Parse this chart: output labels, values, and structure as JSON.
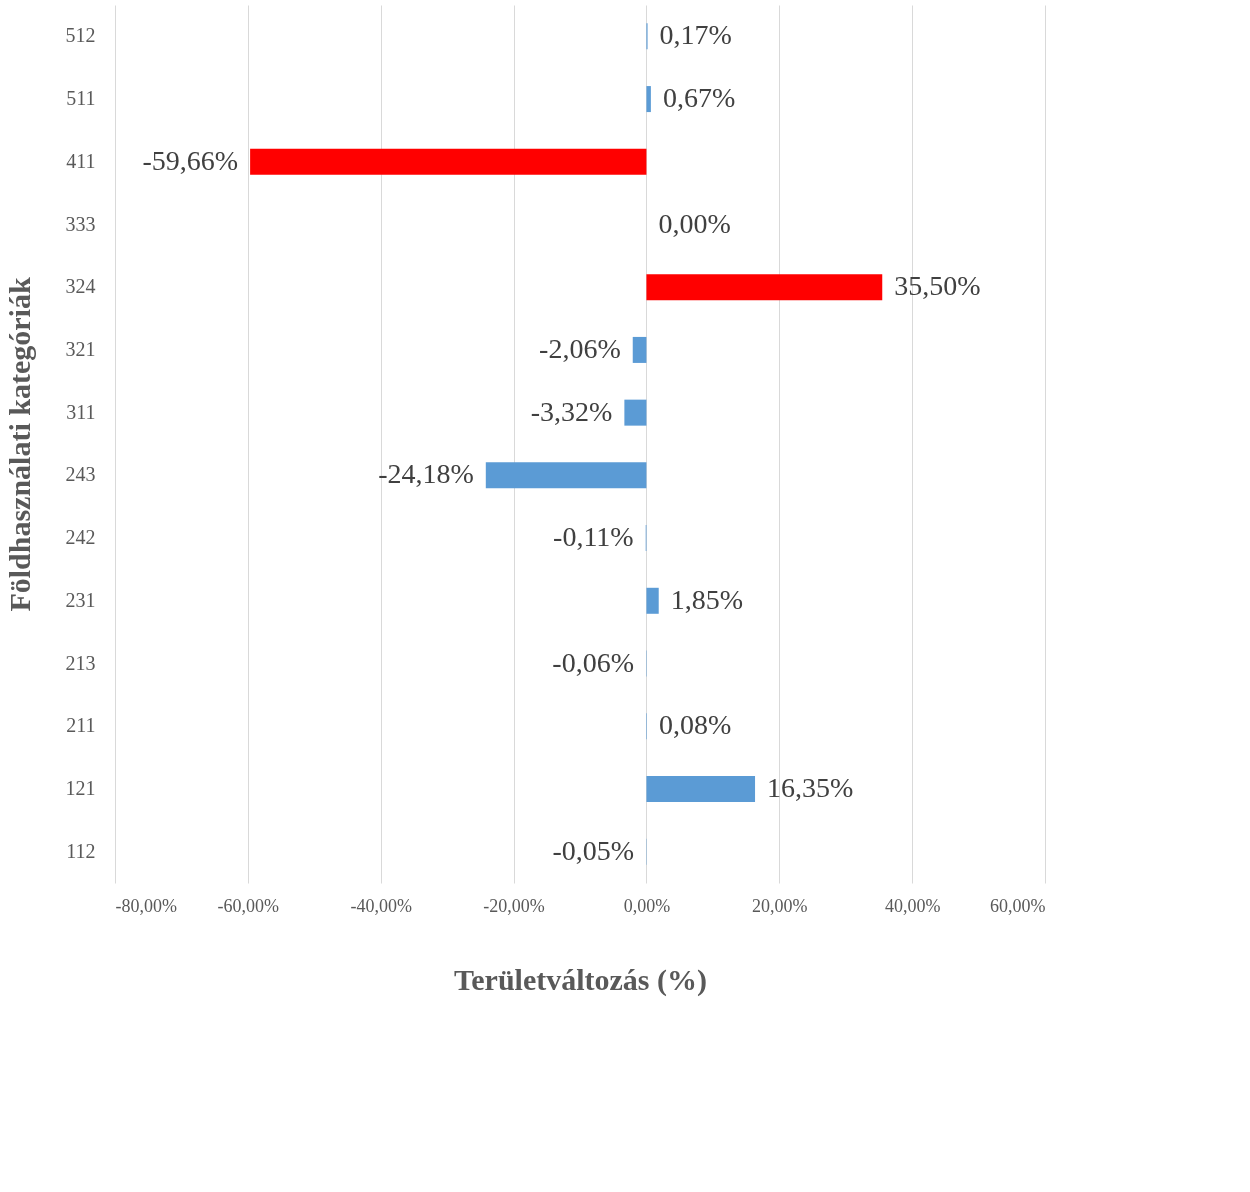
{
  "chart_data": {
    "type": "bar",
    "orientation": "horizontal",
    "xlabel": "Területváltozás (%)",
    "ylabel": "Földhasználati kategóriák",
    "categories": [
      "512",
      "511",
      "411",
      "333",
      "324",
      "321",
      "311",
      "243",
      "242",
      "231",
      "213",
      "211",
      "121",
      "112"
    ],
    "values": [
      0.17,
      0.67,
      -59.66,
      0.0,
      35.5,
      -2.06,
      -3.32,
      -24.18,
      -0.11,
      1.85,
      -0.06,
      0.08,
      16.35,
      -0.05
    ],
    "colors": [
      "#5b9bd5",
      "#5b9bd5",
      "#ff0000",
      "#5b9bd5",
      "#ff0000",
      "#5b9bd5",
      "#5b9bd5",
      "#5b9bd5",
      "#5b9bd5",
      "#5b9bd5",
      "#5b9bd5",
      "#5b9bd5",
      "#5b9bd5",
      "#5b9bd5"
    ],
    "value_labels": [
      "0,17%",
      "0,67%",
      "-59,66%",
      "0,00%",
      "35,50%",
      "-2,06%",
      "-3,32%",
      "-24,18%",
      "-0,11%",
      "1,85%",
      "-0,06%",
      "0,08%",
      "16,35%",
      "-0,05%"
    ],
    "xlim": [
      -80,
      60
    ],
    "xticks": [
      {
        "value": -80,
        "label": "-80,00%"
      },
      {
        "value": -60,
        "label": "-60,00%"
      },
      {
        "value": -40,
        "label": "-40,00%"
      },
      {
        "value": -20,
        "label": "-20,00%"
      },
      {
        "value": 0,
        "label": "0,00%"
      },
      {
        "value": 20,
        "label": "20,00%"
      },
      {
        "value": 40,
        "label": "40,00%"
      },
      {
        "value": 60,
        "label": "60,00%"
      }
    ],
    "grid": "x"
  }
}
